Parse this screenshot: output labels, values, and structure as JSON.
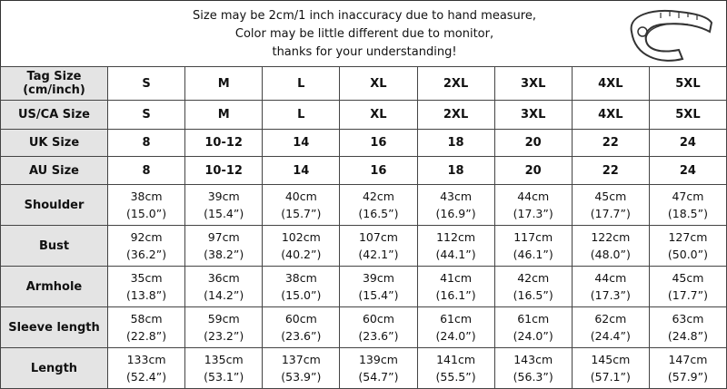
{
  "notice": {
    "lines": [
      "Size may be 2cm/1 inch inaccuracy due to hand measure,",
      "Color may be little different due to monitor,",
      "thanks for your understanding!"
    ],
    "icon": "tape-measure-icon"
  },
  "table": {
    "size_rows": [
      {
        "label": "Tag Size\n(cm/inch)",
        "values": [
          "S",
          "M",
          "L",
          "XL",
          "2XL",
          "3XL",
          "4XL",
          "5XL"
        ]
      },
      {
        "label": "US/CA Size",
        "values": [
          "S",
          "M",
          "L",
          "XL",
          "2XL",
          "3XL",
          "4XL",
          "5XL"
        ]
      },
      {
        "label": "UK Size",
        "values": [
          "8",
          "10-12",
          "14",
          "16",
          "18",
          "20",
          "22",
          "24"
        ]
      },
      {
        "label": "AU Size",
        "values": [
          "8",
          "10-12",
          "14",
          "16",
          "18",
          "20",
          "22",
          "24"
        ]
      }
    ],
    "measure_rows": [
      {
        "label": "Shoulder",
        "cm": [
          "38cm",
          "39cm",
          "40cm",
          "42cm",
          "43cm",
          "44cm",
          "45cm",
          "47cm"
        ],
        "inch": [
          "(15.0”)",
          "(15.4”)",
          "(15.7”)",
          "(16.5”)",
          "(16.9”)",
          "(17.3”)",
          "(17.7”)",
          "(18.5”)"
        ]
      },
      {
        "label": "Bust",
        "cm": [
          "92cm",
          "97cm",
          "102cm",
          "107cm",
          "112cm",
          "117cm",
          "122cm",
          "127cm"
        ],
        "inch": [
          "(36.2”)",
          "(38.2”)",
          "(40.2”)",
          "(42.1”)",
          "(44.1”)",
          "(46.1”)",
          "(48.0”)",
          "(50.0”)"
        ]
      },
      {
        "label": "Armhole",
        "cm": [
          "35cm",
          "36cm",
          "38cm",
          "39cm",
          "41cm",
          "42cm",
          "44cm",
          "45cm"
        ],
        "inch": [
          "(13.8”)",
          "(14.2”)",
          "(15.0”)",
          "(15.4”)",
          "(16.1”)",
          "(16.5”)",
          "(17.3”)",
          "(17.7”)"
        ]
      },
      {
        "label": "Sleeve length",
        "cm": [
          "58cm",
          "59cm",
          "60cm",
          "60cm",
          "61cm",
          "61cm",
          "62cm",
          "63cm"
        ],
        "inch": [
          "(22.8”)",
          "(23.2”)",
          "(23.6”)",
          "(23.6”)",
          "(24.0”)",
          "(24.0”)",
          "(24.4”)",
          "(24.8”)"
        ]
      },
      {
        "label": "Length",
        "cm": [
          "133cm",
          "135cm",
          "137cm",
          "139cm",
          "141cm",
          "143cm",
          "145cm",
          "147cm"
        ],
        "inch": [
          "(52.4”)",
          "(53.1”)",
          "(53.9”)",
          "(54.7”)",
          "(55.5”)",
          "(56.3”)",
          "(57.1”)",
          "(57.9”)"
        ]
      }
    ]
  }
}
